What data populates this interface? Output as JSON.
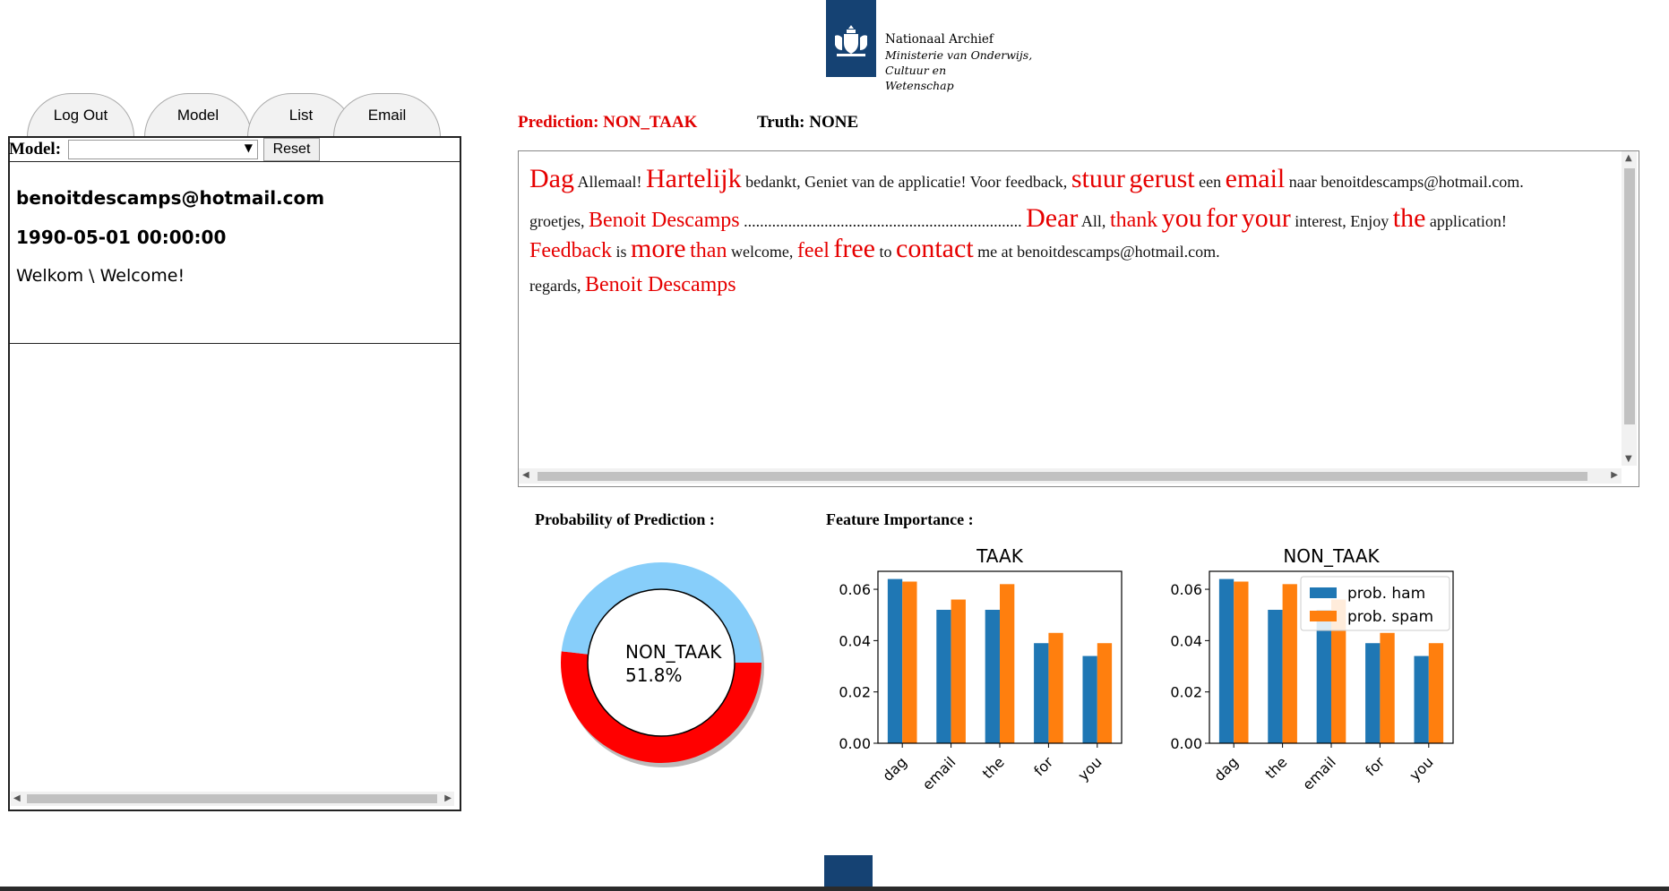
{
  "logo": {
    "line1": "Nationaal Archief",
    "line2": "Ministerie van Onderwijs, Cultuur en",
    "line3": "Wetenschap",
    "color": "#154273",
    "icon": "crest-icon"
  },
  "tabs": [
    {
      "label": "Log Out"
    },
    {
      "label": "Model"
    },
    {
      "label": "List"
    },
    {
      "label": "Email"
    }
  ],
  "model_bar": {
    "label": "Model:",
    "selected": "",
    "reset_label": "Reset"
  },
  "info": {
    "email": "benoitdescamps@hotmail.com",
    "date": "1990-05-01 00:00:00",
    "welcome": "Welkom \\ Welcome!"
  },
  "prediction": {
    "prediction_text": "Prediction: NON_TAAK",
    "truth_text": "Truth: NONE"
  },
  "email_text": {
    "p1": [
      {
        "t": "Dag",
        "hl": true,
        "size": "s2"
      },
      {
        "t": " Allemaal! ",
        "hl": false
      },
      {
        "t": "Hartelijk",
        "hl": true,
        "size": "s2"
      },
      {
        "t": " bedankt, Geniet van de applicatie! Voor feedback, ",
        "hl": false
      },
      {
        "t": "stuur",
        "hl": true,
        "size": "s2"
      },
      {
        "t": " ",
        "hl": false
      },
      {
        "t": "gerust",
        "hl": true,
        "size": "s2"
      },
      {
        "t": " een ",
        "hl": false
      },
      {
        "t": "email",
        "hl": true,
        "size": "s2"
      },
      {
        "t": " naar benoitdescamps@hotmail.com.",
        "hl": false
      }
    ],
    "p2": [
      {
        "t": "groetjes, ",
        "hl": false
      },
      {
        "t": "Benoit Descamps",
        "hl": true,
        "size": "s1"
      },
      {
        "t": " ..................................................................... ",
        "hl": false
      },
      {
        "t": "Dear",
        "hl": true,
        "size": "s2"
      },
      {
        "t": " All, ",
        "hl": false
      },
      {
        "t": "thank",
        "hl": true,
        "size": "s1"
      },
      {
        "t": " ",
        "hl": false
      },
      {
        "t": "you",
        "hl": true,
        "size": "s2"
      },
      {
        "t": " ",
        "hl": false
      },
      {
        "t": "for",
        "hl": true,
        "size": "s2"
      },
      {
        "t": " ",
        "hl": false
      },
      {
        "t": "your",
        "hl": true,
        "size": "s2"
      },
      {
        "t": " interest, Enjoy ",
        "hl": false
      },
      {
        "t": "the",
        "hl": true,
        "size": "s2"
      },
      {
        "t": " application! ",
        "hl": false
      },
      {
        "t": "Feedback",
        "hl": true,
        "size": "s1"
      },
      {
        "t": " is ",
        "hl": false
      },
      {
        "t": "more",
        "hl": true,
        "size": "s2"
      },
      {
        "t": " ",
        "hl": false
      },
      {
        "t": "than",
        "hl": true,
        "size": "s1"
      },
      {
        "t": " welcome, ",
        "hl": false
      },
      {
        "t": "feel",
        "hl": true,
        "size": "s1"
      },
      {
        "t": " ",
        "hl": false
      },
      {
        "t": "free",
        "hl": true,
        "size": "s2"
      },
      {
        "t": " to ",
        "hl": false
      },
      {
        "t": "contact",
        "hl": true,
        "size": "s2"
      },
      {
        "t": " me at benoitdescamps@hotmail.com.",
        "hl": false
      }
    ],
    "p3": [
      {
        "t": "regards, ",
        "hl": false
      },
      {
        "t": "Benoit Descamps",
        "hl": true,
        "size": "s1"
      }
    ]
  },
  "sections": {
    "probability_title": "Probability of Prediction :",
    "feature_title": "Feature Importance :"
  },
  "colors": {
    "highlight": "#e60000",
    "donut_predicted": "#ff0000",
    "donut_other": "#87cefa",
    "ham": "#1f77b4",
    "spam": "#ff7f0e"
  },
  "chart_data": [
    {
      "type": "pie",
      "style": "donut",
      "slices": [
        {
          "label": "NON_TAAK",
          "value": 51.8
        },
        {
          "label": "",
          "value": 48.2
        }
      ],
      "center_label": "NON_TAAK",
      "center_value": "51.8%"
    },
    {
      "type": "bar",
      "title": "TAAK",
      "categories": [
        "dag",
        "email",
        "the",
        "for",
        "you"
      ],
      "series": [
        {
          "name": "prob. ham",
          "values": [
            0.064,
            0.052,
            0.052,
            0.039,
            0.034
          ]
        },
        {
          "name": "prob. spam",
          "values": [
            0.063,
            0.056,
            0.062,
            0.043,
            0.039
          ]
        }
      ],
      "ylim": [
        0,
        0.067
      ],
      "yticks": [
        "0.00",
        "0.02",
        "0.04",
        "0.06"
      ],
      "legend": false
    },
    {
      "type": "bar",
      "title": "NON_TAAK",
      "categories": [
        "dag",
        "the",
        "email",
        "for",
        "you"
      ],
      "series": [
        {
          "name": "prob. ham",
          "values": [
            0.064,
            0.052,
            0.052,
            0.039,
            0.034
          ]
        },
        {
          "name": "prob. spam",
          "values": [
            0.063,
            0.062,
            0.056,
            0.043,
            0.039
          ]
        }
      ],
      "ylim": [
        0,
        0.067
      ],
      "yticks": [
        "0.00",
        "0.02",
        "0.04",
        "0.06"
      ],
      "legend": "top-right"
    }
  ]
}
